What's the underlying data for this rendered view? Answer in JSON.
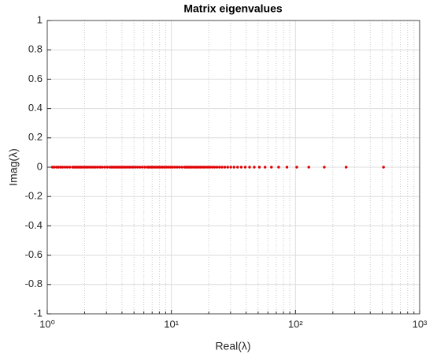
{
  "chart_data": {
    "type": "scatter",
    "title": "Matrix eigenvalues",
    "xlabel": "Real(λ)",
    "ylabel": "Imag(λ)",
    "xscale": "log",
    "grid": true,
    "minor_grid": true,
    "xlim": [
      1,
      1000
    ],
    "ylim": [
      -1,
      1
    ],
    "xticks": [
      {
        "value": 1,
        "label": "10⁰"
      },
      {
        "value": 10,
        "label": "10¹"
      },
      {
        "value": 100,
        "label": "10²"
      },
      {
        "value": 1000,
        "label": "10³"
      }
    ],
    "yticks": [
      -1,
      -0.8,
      -0.6,
      -0.4,
      -0.2,
      0,
      0.2,
      0.4,
      0.6,
      0.8,
      1
    ],
    "series": [
      {
        "color": "#e00000",
        "x": [
          512,
          256,
          170.67,
          128,
          102.4,
          85.33,
          73.14,
          64,
          56.89,
          51.2,
          46.55,
          42.67,
          39.38,
          36.57,
          34.13,
          32,
          30.12,
          28.44,
          26.95,
          25.6,
          24.38,
          23.27,
          22.26,
          21.33,
          20.48,
          19.69,
          18.96,
          18.29,
          17.66,
          17.07,
          16.52,
          16,
          15.52,
          15.06,
          14.63,
          14.22,
          13.84,
          13.47,
          13.13,
          12.8,
          12.19,
          11.64,
          11.13,
          10.67,
          10.24,
          9.85,
          9.48,
          9.14,
          8.83,
          8.53,
          8.26,
          8,
          7.76,
          7.53,
          7.31,
          7.11,
          6.92,
          6.74,
          6.56,
          6.4,
          6.1,
          5.82,
          5.57,
          5.33,
          5.12,
          4.92,
          4.74,
          4.57,
          4.41,
          4.27,
          4.13,
          4,
          3.88,
          3.76,
          3.66,
          3.56,
          3.46,
          3.37,
          3.28,
          3.2,
          3.05,
          2.91,
          2.78,
          2.67,
          2.56,
          2.46,
          2.37,
          2.29,
          2.21,
          2.13,
          2.06,
          2,
          1.94,
          1.88,
          1.83,
          1.78,
          1.73,
          1.68,
          1.64,
          1.6,
          1.52,
          1.45,
          1.39,
          1.33,
          1.28,
          1.23,
          1.19,
          1.14,
          1.1
        ],
        "y": [
          0,
          0,
          0,
          0,
          0,
          0,
          0,
          0,
          0,
          0,
          0,
          0,
          0,
          0,
          0,
          0,
          0,
          0,
          0,
          0,
          0,
          0,
          0,
          0,
          0,
          0,
          0,
          0,
          0,
          0,
          0,
          0,
          0,
          0,
          0,
          0,
          0,
          0,
          0,
          0,
          0,
          0,
          0,
          0,
          0,
          0,
          0,
          0,
          0,
          0,
          0,
          0,
          0,
          0,
          0,
          0,
          0,
          0,
          0,
          0,
          0,
          0,
          0,
          0,
          0,
          0,
          0,
          0,
          0,
          0,
          0,
          0,
          0,
          0,
          0,
          0,
          0,
          0,
          0,
          0,
          0,
          0,
          0,
          0,
          0,
          0,
          0,
          0,
          0,
          0,
          0,
          0,
          0,
          0,
          0,
          0,
          0,
          0,
          0,
          0,
          0,
          0,
          0,
          0,
          0,
          0,
          0,
          0,
          0
        ]
      }
    ]
  }
}
